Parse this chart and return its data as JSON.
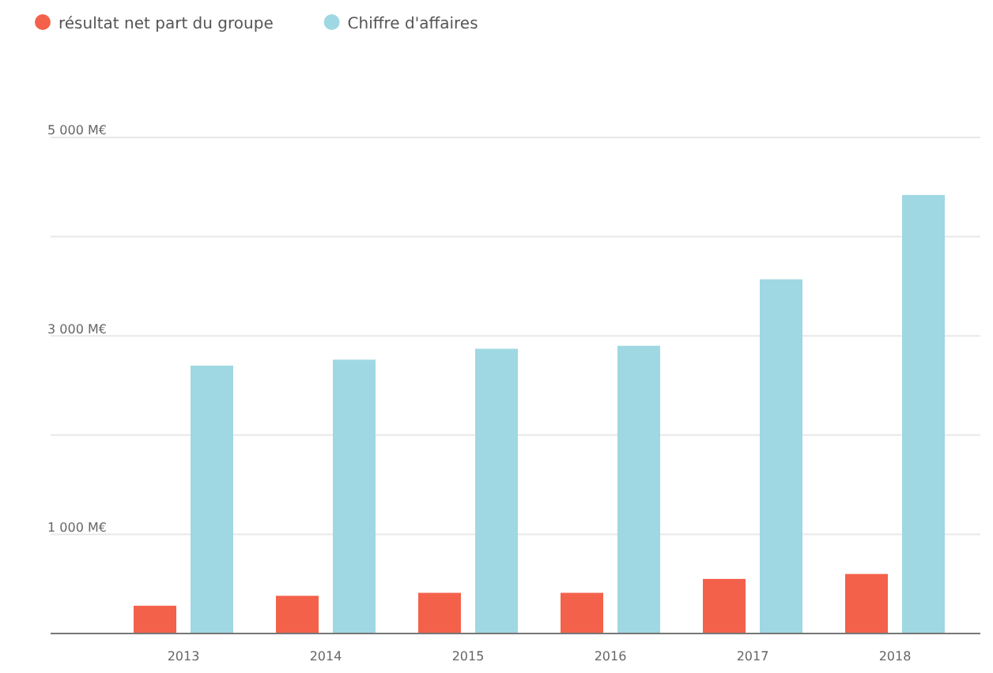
{
  "chart_data": {
    "type": "bar",
    "categories": [
      "2013",
      "2014",
      "2015",
      "2016",
      "2017",
      "2018"
    ],
    "series": [
      {
        "name": "résultat net part du groupe",
        "color": "#f4614a",
        "values": [
          280,
          380,
          410,
          410,
          550,
          600
        ]
      },
      {
        "name": "Chiffre d'affaires",
        "color": "#9fd8e2",
        "values": [
          2700,
          2760,
          2870,
          2900,
          3570,
          4420
        ]
      }
    ],
    "ylim": [
      0,
      5000
    ],
    "yticks": [
      {
        "value": 0,
        "label": null
      },
      {
        "value": 1000,
        "label": "1 000 M€"
      },
      {
        "value": 2000,
        "label": null
      },
      {
        "value": 3000,
        "label": "3 000 M€"
      },
      {
        "value": 4000,
        "label": null
      },
      {
        "value": 5000,
        "label": "5 000 M€"
      }
    ],
    "grid": "y",
    "legend": "top left"
  }
}
